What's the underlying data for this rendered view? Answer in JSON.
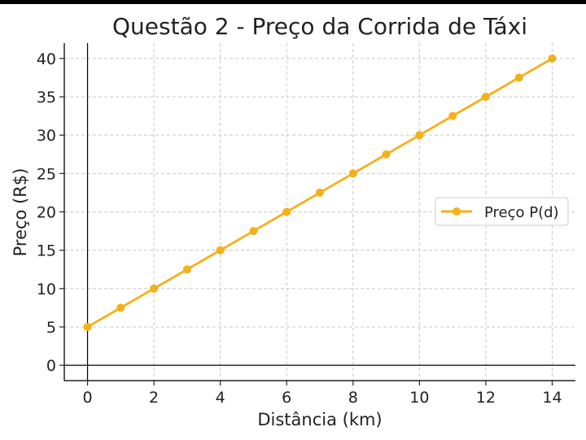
{
  "chart_data": {
    "type": "line",
    "title": "Questão 2 - Preço da Corrida de Táxi",
    "xlabel": "Distância (km)",
    "ylabel": "Preço (R$)",
    "xlim": [
      -0.7,
      14.7
    ],
    "ylim": [
      -2,
      42
    ],
    "xticks": [
      0,
      2,
      4,
      6,
      8,
      10,
      12,
      14
    ],
    "yticks": [
      0,
      5,
      10,
      15,
      20,
      25,
      30,
      35,
      40
    ],
    "grid": true,
    "legend_position": "center-right",
    "series": [
      {
        "name": "Preço P(d)",
        "color": "#f5b01a",
        "x": [
          0,
          1,
          2,
          3,
          4,
          5,
          6,
          7,
          8,
          9,
          10,
          11,
          12,
          13,
          14
        ],
        "y": [
          5,
          7.5,
          10,
          12.5,
          15,
          17.5,
          20,
          22.5,
          25,
          27.5,
          30,
          32.5,
          35,
          37.5,
          40
        ]
      }
    ]
  }
}
